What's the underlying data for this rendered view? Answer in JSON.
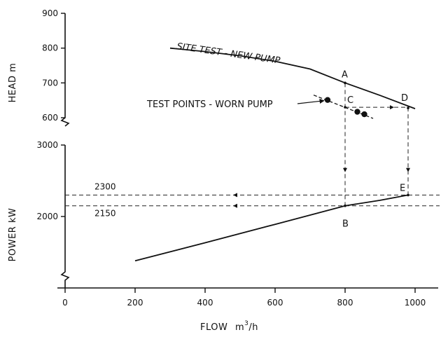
{
  "chart_data": {
    "type": "line",
    "x_axis": {
      "label": "FLOW",
      "unit_base": "m",
      "unit_exp": "3",
      "unit_tail": "/h",
      "range": [
        0,
        1000
      ],
      "ticks": [
        0,
        200,
        400,
        600,
        800,
        1000
      ],
      "tick_labels": [
        "0",
        "200",
        "400",
        "600",
        "800",
        "1000"
      ]
    },
    "head_axis": {
      "label": "HEAD m",
      "range": [
        600,
        900
      ],
      "ticks": [
        600,
        700,
        800,
        900
      ],
      "tick_labels": [
        "600",
        "700",
        "800",
        "900"
      ]
    },
    "power_axis": {
      "label": "POWER kW",
      "range": [
        2000,
        3000
      ],
      "ticks": [
        2000,
        3000
      ],
      "tick_labels": [
        "2000",
        "3000"
      ]
    },
    "grid": false,
    "legend": "none",
    "head_series": {
      "label": "SITE TEST - NEW PUMP",
      "points": [
        [
          300,
          800
        ],
        [
          400,
          790
        ],
        [
          500,
          778
        ],
        [
          600,
          762
        ],
        [
          700,
          740
        ],
        [
          800,
          700
        ],
        [
          900,
          664
        ],
        [
          1000,
          626
        ]
      ]
    },
    "worn_series": {
      "label": "TEST POINTS - WORN PUMP",
      "points": [
        [
          750,
          651
        ],
        [
          835,
          617
        ],
        [
          855,
          610
        ]
      ],
      "trend": [
        [
          710,
          665
        ],
        [
          880,
          598
        ]
      ]
    },
    "power_series": {
      "points": [
        [
          200,
          1380
        ],
        [
          400,
          1632
        ],
        [
          600,
          1890
        ],
        [
          800,
          2150
        ],
        [
          900,
          2226
        ],
        [
          980,
          2300
        ]
      ]
    },
    "reference_levels": [
      {
        "label": "2300",
        "value": 2300
      },
      {
        "label": "2150",
        "value": 2150
      }
    ],
    "point_labels": [
      {
        "label": "A",
        "x": 800,
        "y": 700,
        "axis": "head"
      },
      {
        "label": "B",
        "x": 800,
        "y": 2150,
        "axis": "power"
      },
      {
        "label": "C",
        "x": 800,
        "y": 630,
        "axis": "head"
      },
      {
        "label": "D",
        "x": 980,
        "y": 628,
        "axis": "head"
      },
      {
        "label": "E",
        "x": 980,
        "y": 2300,
        "axis": "power"
      }
    ],
    "colors": {
      "line": "#111111",
      "dashed": "#222222",
      "background": "#ffffff"
    }
  }
}
